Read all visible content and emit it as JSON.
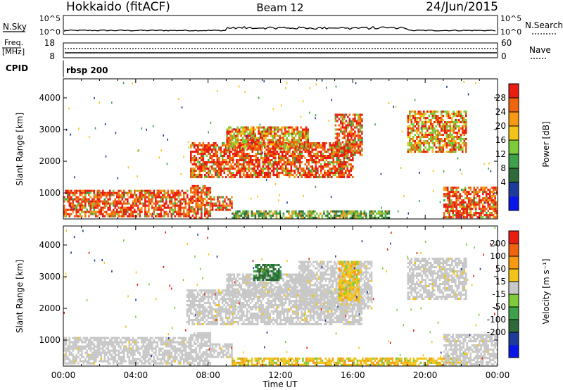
{
  "header": {
    "station": "Hokkaido (fitACF)",
    "beam": "Beam 12",
    "date": "24/Jun/2015"
  },
  "nsky": {
    "left_label": "N.Sky",
    "right_label": "N.Search",
    "top_tick": "10^5",
    "bottom_tick": "10^0"
  },
  "freq": {
    "left_label_line1": "Freq.",
    "left_label_line2": "[MHz]",
    "right_label": "Nave",
    "left_ticks": [
      "18",
      "8"
    ],
    "right_ticks": [
      "60",
      "0"
    ]
  },
  "cpid": {
    "label": "CPID",
    "value": "rbsp 200"
  },
  "xaxis": {
    "label": "Time UT",
    "ticks": [
      "00:00",
      "04:00",
      "08:00",
      "12:00",
      "16:00",
      "20:00",
      "00:00"
    ]
  },
  "chart_data": [
    {
      "type": "heatmap",
      "name": "power",
      "xlabel": "Time UT",
      "ylabel": "Slant Range [km]",
      "xlim_hours": [
        0,
        24
      ],
      "ylim": [
        180,
        4600
      ],
      "y_ticks": [
        "1000",
        "2000",
        "3000",
        "4000"
      ],
      "colorbar": {
        "label": "Power [dB]",
        "ticks": [
          "28",
          "24",
          "20",
          "16",
          "12",
          "8",
          "4"
        ],
        "colors": [
          "#0a16e8",
          "#1e3a9a",
          "#2f6a3a",
          "#3ea04a",
          "#7ccb3a",
          "#f2c418",
          "#f59a12",
          "#f06410",
          "#e81e10"
        ]
      },
      "regions": [
        {
          "t0": 0.0,
          "t1": 7.0,
          "r0": 250,
          "r1": 1100,
          "level": "strong"
        },
        {
          "t0": 7.0,
          "t1": 8.1,
          "r0": 250,
          "r1": 1250,
          "level": "strong"
        },
        {
          "t0": 8.1,
          "t1": 9.3,
          "r0": 500,
          "r1": 900,
          "level": "strong"
        },
        {
          "t0": 9.3,
          "t1": 18.0,
          "r0": 200,
          "r1": 450,
          "level": "weak"
        },
        {
          "t0": 7.0,
          "t1": 16.0,
          "r0": 1500,
          "r1": 2600,
          "level": "arc"
        },
        {
          "t0": 15.0,
          "t1": 16.5,
          "r0": 2200,
          "r1": 3500,
          "level": "arc"
        },
        {
          "t0": 9.0,
          "t1": 13.5,
          "r0": 2400,
          "r1": 3100,
          "level": "medium"
        },
        {
          "t0": 19.0,
          "t1": 22.3,
          "r0": 2300,
          "r1": 3600,
          "level": "medium"
        },
        {
          "t0": 21.0,
          "t1": 24.0,
          "r0": 250,
          "r1": 1200,
          "level": "strong"
        }
      ]
    },
    {
      "type": "heatmap",
      "name": "velocity",
      "xlabel": "Time UT",
      "ylabel": "Slant Range [km]",
      "xlim_hours": [
        0,
        24
      ],
      "ylim": [
        180,
        4600
      ],
      "y_ticks": [
        "1000",
        "2000",
        "3000",
        "4000"
      ],
      "colorbar": {
        "label": "Velocity [m s⁻¹]",
        "ticks": [
          "200",
          "100",
          "50",
          "15",
          "-15",
          "-50",
          "-100",
          "-200"
        ],
        "colors": [
          "#0a16e8",
          "#1e3a9a",
          "#2f6a3a",
          "#3ea04a",
          "#7ccb3a",
          "#c8c8c8",
          "#f2c418",
          "#f59a12",
          "#f06410",
          "#e81e10"
        ]
      },
      "regions": [
        {
          "t0": 0.0,
          "t1": 7.0,
          "r0": 250,
          "r1": 1100,
          "level": "ground"
        },
        {
          "t0": 7.0,
          "t1": 8.1,
          "r0": 250,
          "r1": 1250,
          "level": "ground"
        },
        {
          "t0": 8.1,
          "t1": 9.3,
          "r0": 500,
          "r1": 900,
          "level": "ground"
        },
        {
          "t0": 6.8,
          "t1": 16.5,
          "r0": 1500,
          "r1": 2600,
          "level": "ground"
        },
        {
          "t0": 13.0,
          "t1": 17.0,
          "r0": 2000,
          "r1": 3500,
          "level": "ground"
        },
        {
          "t0": 9.0,
          "t1": 13.5,
          "r0": 2400,
          "r1": 3100,
          "level": "ground"
        },
        {
          "t0": 10.5,
          "t1": 12.0,
          "r0": 2900,
          "r1": 3400,
          "level": "darkgreen"
        },
        {
          "t0": 15.2,
          "t1": 16.3,
          "r0": 2300,
          "r1": 3500,
          "level": "orange"
        },
        {
          "t0": 19.0,
          "t1": 22.3,
          "r0": 2300,
          "r1": 3600,
          "level": "ground"
        },
        {
          "t0": 9.3,
          "t1": 22.0,
          "r0": 200,
          "r1": 450,
          "level": "orange"
        },
        {
          "t0": 21.0,
          "t1": 24.0,
          "r0": 250,
          "r1": 1200,
          "level": "ground"
        }
      ]
    }
  ]
}
